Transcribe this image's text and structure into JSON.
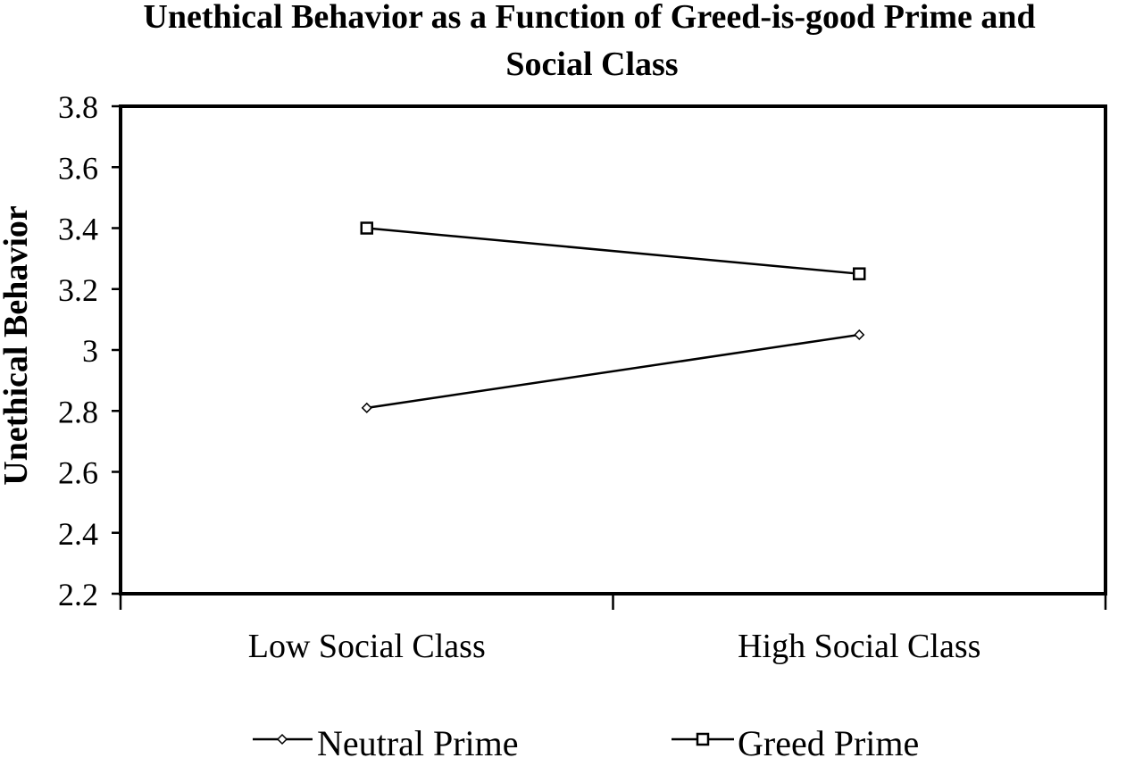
{
  "chart_data": {
    "type": "line",
    "title": "Unethical Behavior as a Function of Greed-is-good Prime and Social Class",
    "title_lines": [
      "Unethical Behavior as a Function of Greed-is-good Prime and",
      "Social Class"
    ],
    "xlabel": "",
    "ylabel": "Unethical Behavior",
    "categories": [
      "Low Social Class",
      "High Social Class"
    ],
    "ylim": [
      2.2,
      3.8
    ],
    "yticks": [
      3.8,
      3.6,
      3.4,
      3.2,
      3,
      2.8,
      2.6,
      2.4,
      2.2
    ],
    "grid": false,
    "legend_position": "bottom",
    "series": [
      {
        "name": "Neutral Prime",
        "marker": "diamond",
        "values": [
          2.81,
          3.05
        ],
        "color": "#000000"
      },
      {
        "name": "Greed Prime",
        "marker": "square",
        "values": [
          3.4,
          3.25
        ],
        "color": "#000000"
      }
    ]
  }
}
